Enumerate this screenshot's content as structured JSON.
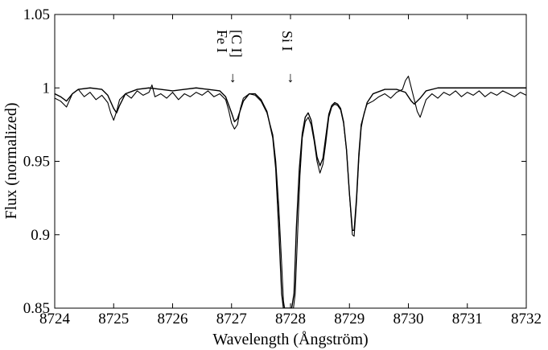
{
  "chart_data": {
    "type": "line",
    "xlabel": "Wavelength (Ångström)",
    "ylabel": "Flux (normalized)",
    "xlim": [
      8724,
      8732
    ],
    "ylim": [
      0.85,
      1.05
    ],
    "xticks": [
      8724,
      8725,
      8726,
      8727,
      8728,
      8729,
      8730,
      8731,
      8732
    ],
    "yticks": [
      "0.85",
      "0.9",
      "0.95",
      "1",
      "1.05"
    ],
    "grid": false,
    "annotations": [
      {
        "label": "Fe I",
        "x": 8727.02,
        "y": 1.017
      },
      {
        "label": "[C I]",
        "x": 8727.02,
        "y": 1.017
      },
      {
        "label": "Si I",
        "x": 8728.0,
        "y": 1.017
      }
    ],
    "series": [
      {
        "values": [
          [
            8724.0,
            0.993
          ],
          [
            8724.1,
            0.991
          ],
          [
            8724.2,
            0.987
          ],
          [
            8724.3,
            0.996
          ],
          [
            8724.4,
            0.999
          ],
          [
            8724.5,
            0.994
          ],
          [
            8724.6,
            0.997
          ],
          [
            8724.7,
            0.992
          ],
          [
            8724.8,
            0.995
          ],
          [
            8724.9,
            0.99
          ],
          [
            8724.95,
            0.983
          ],
          [
            8725.0,
            0.978
          ],
          [
            8725.05,
            0.984
          ],
          [
            8725.1,
            0.992
          ],
          [
            8725.2,
            0.996
          ],
          [
            8725.3,
            0.993
          ],
          [
            8725.4,
            0.998
          ],
          [
            8725.5,
            0.995
          ],
          [
            8725.6,
            0.997
          ],
          [
            8725.65,
            1.002
          ],
          [
            8725.7,
            0.994
          ],
          [
            8725.8,
            0.996
          ],
          [
            8725.9,
            0.993
          ],
          [
            8726.0,
            0.997
          ],
          [
            8726.1,
            0.992
          ],
          [
            8726.2,
            0.996
          ],
          [
            8726.3,
            0.994
          ],
          [
            8726.4,
            0.997
          ],
          [
            8726.5,
            0.995
          ],
          [
            8726.6,
            0.998
          ],
          [
            8726.7,
            0.994
          ],
          [
            8726.8,
            0.996
          ],
          [
            8726.9,
            0.992
          ],
          [
            8726.95,
            0.985
          ],
          [
            8727.0,
            0.976
          ],
          [
            8727.05,
            0.972
          ],
          [
            8727.1,
            0.975
          ],
          [
            8727.15,
            0.986
          ],
          [
            8727.2,
            0.993
          ],
          [
            8727.3,
            0.996
          ],
          [
            8727.4,
            0.995
          ],
          [
            8727.5,
            0.991
          ],
          [
            8727.6,
            0.983
          ],
          [
            8727.7,
            0.968
          ],
          [
            8727.75,
            0.95
          ],
          [
            8727.8,
            0.92
          ],
          [
            8727.85,
            0.88
          ],
          [
            8727.88,
            0.855
          ],
          [
            8727.9,
            0.85
          ],
          [
            8727.95,
            0.85
          ],
          [
            8728.0,
            0.85
          ],
          [
            8728.05,
            0.85
          ],
          [
            8728.08,
            0.86
          ],
          [
            8728.12,
            0.9
          ],
          [
            8728.16,
            0.94
          ],
          [
            8728.2,
            0.966
          ],
          [
            8728.25,
            0.977
          ],
          [
            8728.3,
            0.98
          ],
          [
            8728.35,
            0.975
          ],
          [
            8728.4,
            0.964
          ],
          [
            8728.45,
            0.95
          ],
          [
            8728.5,
            0.942
          ],
          [
            8728.55,
            0.948
          ],
          [
            8728.6,
            0.963
          ],
          [
            8728.65,
            0.98
          ],
          [
            8728.7,
            0.987
          ],
          [
            8728.75,
            0.989
          ],
          [
            8728.8,
            0.988
          ],
          [
            8728.85,
            0.985
          ],
          [
            8728.9,
            0.976
          ],
          [
            8728.95,
            0.958
          ],
          [
            8729.0,
            0.928
          ],
          [
            8729.05,
            0.9
          ],
          [
            8729.08,
            0.899
          ],
          [
            8729.12,
            0.922
          ],
          [
            8729.16,
            0.952
          ],
          [
            8729.2,
            0.973
          ],
          [
            8729.25,
            0.983
          ],
          [
            8729.3,
            0.989
          ],
          [
            8729.4,
            0.991
          ],
          [
            8729.5,
            0.994
          ],
          [
            8729.6,
            0.996
          ],
          [
            8729.7,
            0.993
          ],
          [
            8729.8,
            0.997
          ],
          [
            8729.9,
            0.999
          ],
          [
            8729.95,
            1.005
          ],
          [
            8730.0,
            1.008
          ],
          [
            8730.05,
            1.0
          ],
          [
            8730.1,
            0.992
          ],
          [
            8730.15,
            0.984
          ],
          [
            8730.2,
            0.98
          ],
          [
            8730.25,
            0.986
          ],
          [
            8730.3,
            0.992
          ],
          [
            8730.4,
            0.996
          ],
          [
            8730.5,
            0.993
          ],
          [
            8730.6,
            0.997
          ],
          [
            8730.7,
            0.995
          ],
          [
            8730.8,
            0.998
          ],
          [
            8730.9,
            0.994
          ],
          [
            8731.0,
            0.997
          ],
          [
            8731.1,
            0.995
          ],
          [
            8731.2,
            0.998
          ],
          [
            8731.3,
            0.994
          ],
          [
            8731.4,
            0.997
          ],
          [
            8731.5,
            0.995
          ],
          [
            8731.6,
            0.998
          ],
          [
            8731.7,
            0.996
          ],
          [
            8731.8,
            0.994
          ],
          [
            8731.9,
            0.997
          ],
          [
            8732.0,
            0.995
          ]
        ]
      },
      {
        "values": [
          [
            8724.0,
            0.996
          ],
          [
            8724.1,
            0.994
          ],
          [
            8724.2,
            0.991
          ],
          [
            8724.3,
            0.996
          ],
          [
            8724.4,
            0.999
          ],
          [
            8724.6,
            1.0
          ],
          [
            8724.8,
            0.999
          ],
          [
            8724.9,
            0.995
          ],
          [
            8725.0,
            0.986
          ],
          [
            8725.05,
            0.983
          ],
          [
            8725.1,
            0.988
          ],
          [
            8725.2,
            0.996
          ],
          [
            8725.4,
            0.999
          ],
          [
            8725.6,
            1.0
          ],
          [
            8725.8,
            0.999
          ],
          [
            8726.0,
            0.998
          ],
          [
            8726.2,
            0.999
          ],
          [
            8726.4,
            1.0
          ],
          [
            8726.6,
            0.999
          ],
          [
            8726.8,
            0.998
          ],
          [
            8726.9,
            0.994
          ],
          [
            8727.0,
            0.983
          ],
          [
            8727.05,
            0.977
          ],
          [
            8727.1,
            0.979
          ],
          [
            8727.2,
            0.991
          ],
          [
            8727.3,
            0.996
          ],
          [
            8727.4,
            0.996
          ],
          [
            8727.5,
            0.992
          ],
          [
            8727.6,
            0.984
          ],
          [
            8727.7,
            0.966
          ],
          [
            8727.75,
            0.945
          ],
          [
            8727.8,
            0.905
          ],
          [
            8727.85,
            0.86
          ],
          [
            8727.88,
            0.85
          ],
          [
            8727.95,
            0.85
          ],
          [
            8728.02,
            0.85
          ],
          [
            8728.06,
            0.86
          ],
          [
            8728.1,
            0.905
          ],
          [
            8728.15,
            0.945
          ],
          [
            8728.2,
            0.969
          ],
          [
            8728.25,
            0.98
          ],
          [
            8728.3,
            0.983
          ],
          [
            8728.35,
            0.978
          ],
          [
            8728.4,
            0.966
          ],
          [
            8728.45,
            0.953
          ],
          [
            8728.5,
            0.947
          ],
          [
            8728.55,
            0.952
          ],
          [
            8728.6,
            0.967
          ],
          [
            8728.65,
            0.982
          ],
          [
            8728.7,
            0.988
          ],
          [
            8728.75,
            0.99
          ],
          [
            8728.8,
            0.989
          ],
          [
            8728.85,
            0.986
          ],
          [
            8728.9,
            0.977
          ],
          [
            8728.95,
            0.958
          ],
          [
            8729.0,
            0.928
          ],
          [
            8729.05,
            0.903
          ],
          [
            8729.08,
            0.903
          ],
          [
            8729.12,
            0.925
          ],
          [
            8729.16,
            0.955
          ],
          [
            8729.2,
            0.975
          ],
          [
            8729.3,
            0.99
          ],
          [
            8729.4,
            0.996
          ],
          [
            8729.6,
            0.999
          ],
          [
            8729.8,
            0.999
          ],
          [
            8729.95,
            0.997
          ],
          [
            8730.05,
            0.991
          ],
          [
            8730.1,
            0.989
          ],
          [
            8730.2,
            0.993
          ],
          [
            8730.3,
            0.998
          ],
          [
            8730.5,
            1.0
          ],
          [
            8731.0,
            1.0
          ],
          [
            8731.5,
            1.0
          ],
          [
            8732.0,
            1.0
          ]
        ]
      }
    ]
  }
}
